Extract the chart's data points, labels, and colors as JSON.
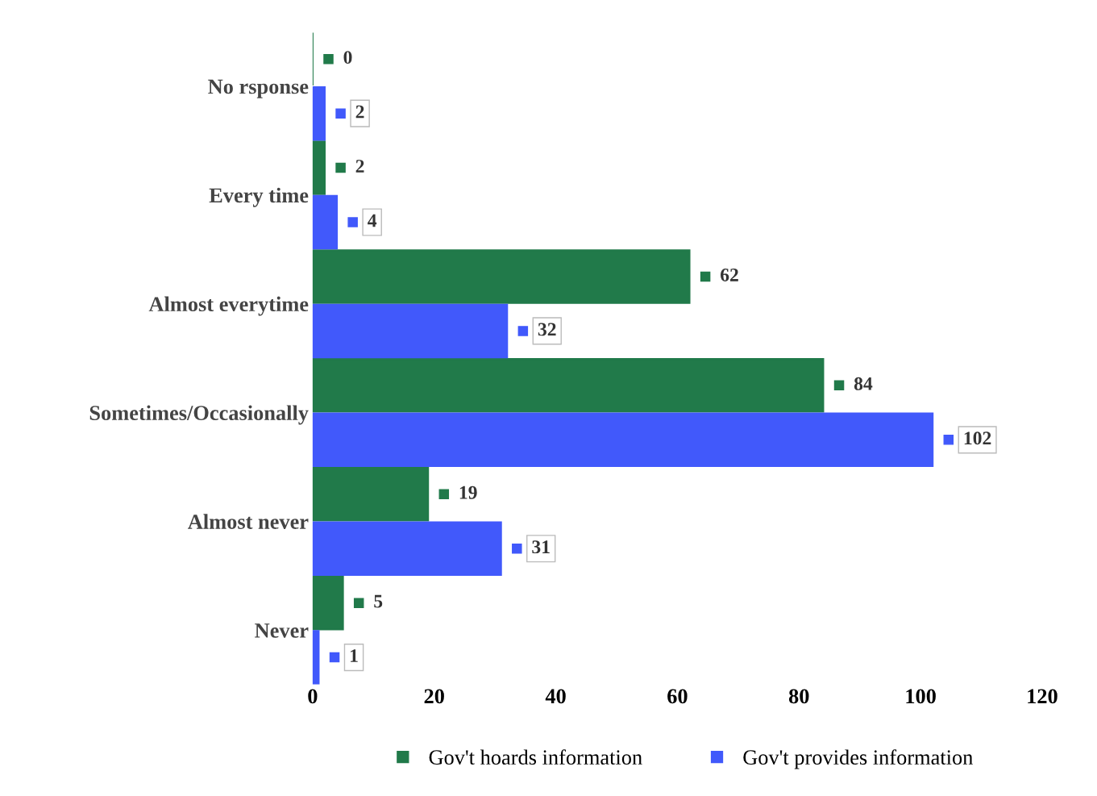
{
  "chart_data": {
    "type": "bar",
    "orientation": "horizontal",
    "categories": [
      "No rsponse",
      "Every time",
      "Almost everytime",
      "Sometimes/Occasionally",
      "Almost never",
      "Never"
    ],
    "series": [
      {
        "name": "Gov't hoards information",
        "color": "#217a4a",
        "values": [
          0,
          2,
          62,
          84,
          19,
          5
        ]
      },
      {
        "name": "Gov't provides information",
        "color": "#4159fb",
        "values": [
          2,
          4,
          32,
          102,
          31,
          1
        ]
      }
    ],
    "xlim": [
      0,
      120
    ],
    "xticks": [
      0,
      20,
      40,
      60,
      80,
      100,
      120
    ],
    "grid": false,
    "legend": "bottom",
    "data_labels": true
  }
}
